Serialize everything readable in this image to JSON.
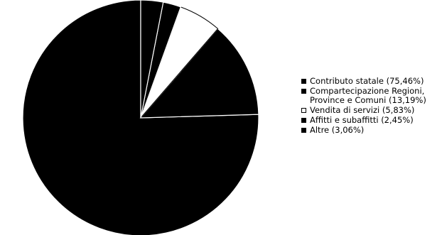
{
  "chart_data": {
    "type": "pie",
    "slices": [
      {
        "label": "Contributo statale (75,46%)",
        "value": 75.46,
        "color": "#000000"
      },
      {
        "label": "Compartecipazione Regioni, Province e Comuni (13,19%)",
        "value": 13.19,
        "color": "#000000"
      },
      {
        "label": "Vendita di servizi (5,83%)",
        "value": 5.83,
        "color": "#ffffff"
      },
      {
        "label": "Affitti e subaffitti (2,45%)",
        "value": 2.45,
        "color": "#000000"
      },
      {
        "label": "Altre (3,06%)",
        "value": 3.06,
        "color": "#000000"
      }
    ],
    "legend_position": "right",
    "title": ""
  }
}
